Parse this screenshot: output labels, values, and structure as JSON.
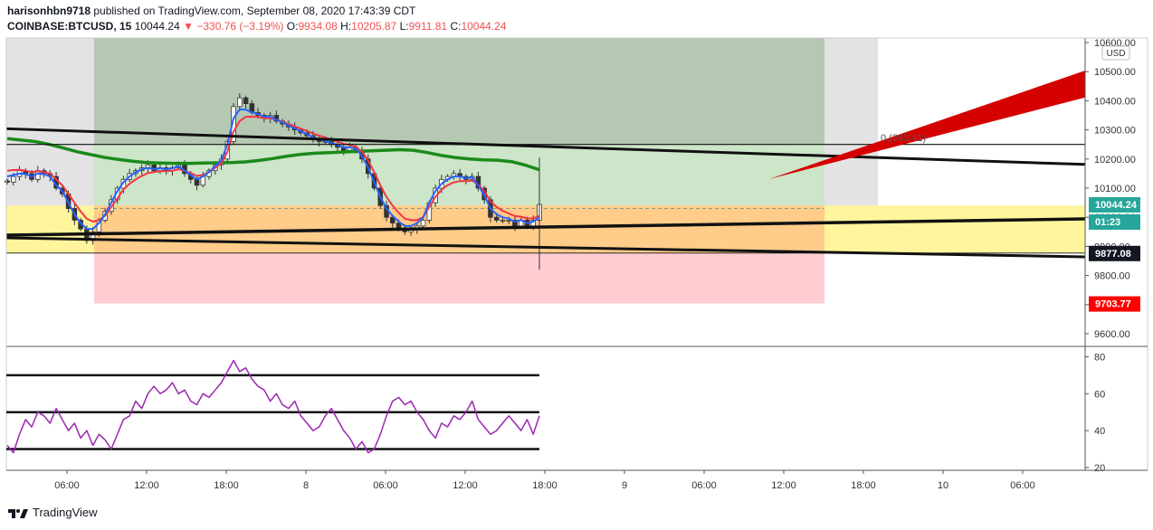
{
  "header": {
    "author": "harisonhbn9718",
    "published_text": " published on TradingView.com, September 08, 2020 17:43:39 CDT",
    "symbol": "COINBASE:BTCUSD, 15",
    "last": "10044.24",
    "change": "−330.76 (−3.19%)",
    "o_label": "O:",
    "o": "9934.08",
    "h_label": "H:",
    "h": "10205.87",
    "l_label": "L:",
    "l": "9911.81",
    "c_label": "C:",
    "c": "10044.24"
  },
  "footer": {
    "brand": "TradingView"
  },
  "colors": {
    "up": "#26a69a",
    "down": "#ef5350",
    "ema_fast": "#2962ff",
    "ema_slow": "#f23645",
    "ma_long": "#1b8a1b",
    "rsi": "#9c27b0",
    "target": "#d50000"
  },
  "chart_data": [
    {
      "type": "candlestick",
      "currency": "USD",
      "y_ticks": [
        10600,
        10500,
        10400,
        10300,
        10200,
        10100,
        10000,
        9900,
        9800,
        9700,
        9600
      ],
      "y_tick_labels": [
        "10600.00",
        "10500.00",
        "10400.00",
        "10300.00",
        "10200.00",
        "10100.00",
        "10000.00",
        "9900.00",
        "9800.00",
        "9700.00",
        "9600.00"
      ],
      "ylim": [
        9560,
        10610
      ],
      "x_tick_labels": [
        "06:00",
        "12:00",
        "18:00",
        "8",
        "06:00",
        "12:00",
        "18:00",
        "9",
        "06:00",
        "12:00",
        "18:00",
        "10",
        "06:00"
      ],
      "price_labels": [
        {
          "value": 10044.24,
          "text": "10044.24",
          "color": "#26a69a"
        },
        {
          "value": 9995,
          "text": "01:23",
          "color": "#26a69a"
        },
        {
          "value": 9877.08,
          "text": "9877.08",
          "color": "#131722"
        },
        {
          "value": 9703.77,
          "text": "9703.77",
          "color": "#ff0000"
        }
      ],
      "annotation_text": "0.(243.41)",
      "levels": {
        "top_line": 10250,
        "entry_top": 10040,
        "entry_bottom": 9877,
        "stop": 9704,
        "projection_top": 10605
      },
      "close": [
        10120,
        10140,
        10160,
        10150,
        10130,
        10160,
        10150,
        10140,
        10100,
        10080,
        10030,
        9990,
        9960,
        9920,
        9950,
        9990,
        10020,
        10060,
        10100,
        10130,
        10150,
        10160,
        10170,
        10180,
        10160,
        10170,
        10160,
        10170,
        10180,
        10150,
        10130,
        10110,
        10140,
        10160,
        10180,
        10200,
        10260,
        10380,
        10410,
        10390,
        10360,
        10350,
        10340,
        10350,
        10330,
        10320,
        10310,
        10300,
        10290,
        10280,
        10270,
        10260,
        10260,
        10250,
        10240,
        10230,
        10240,
        10230,
        10200,
        10150,
        10100,
        10040,
        10000,
        9980,
        9960,
        9950,
        9960,
        9970,
        9990,
        10050,
        10100,
        10130,
        10140,
        10150,
        10140,
        10130,
        10140,
        10100,
        10060,
        10000,
        9990,
        9990,
        9990,
        9970,
        9990,
        9970,
        9990,
        10044
      ],
      "ema_fast": [
        10140,
        10145,
        10150,
        10148,
        10140,
        10150,
        10148,
        10140,
        10110,
        10090,
        10050,
        10010,
        9980,
        9960,
        9960,
        9980,
        10010,
        10050,
        10090,
        10120,
        10140,
        10155,
        10165,
        10170,
        10165,
        10168,
        10165,
        10168,
        10175,
        10160,
        10145,
        10130,
        10140,
        10155,
        10175,
        10195,
        10250,
        10340,
        10370,
        10370,
        10360,
        10355,
        10345,
        10345,
        10335,
        10325,
        10315,
        10305,
        10295,
        10285,
        10275,
        10268,
        10262,
        10255,
        10248,
        10240,
        10240,
        10235,
        10210,
        10170,
        10120,
        10070,
        10030,
        10005,
        9985,
        9970,
        9970,
        9980,
        10000,
        10050,
        10090,
        10115,
        10130,
        10140,
        10140,
        10135,
        10137,
        10110,
        10075,
        10030,
        10010,
        10000,
        9995,
        9985,
        9990,
        9980,
        9985,
        10000
      ],
      "ema_slow": [
        10160,
        10162,
        10163,
        10160,
        10155,
        10158,
        10155,
        10150,
        10130,
        10110,
        10080,
        10050,
        10020,
        9995,
        9985,
        9990,
        10005,
        10035,
        10065,
        10095,
        10115,
        10130,
        10142,
        10152,
        10155,
        10158,
        10158,
        10160,
        10165,
        10160,
        10152,
        10142,
        10145,
        10155,
        10170,
        10185,
        10225,
        10295,
        10330,
        10345,
        10345,
        10345,
        10340,
        10340,
        10335,
        10328,
        10320,
        10312,
        10304,
        10296,
        10288,
        10280,
        10274,
        10267,
        10260,
        10252,
        10248,
        10242,
        10225,
        10195,
        10155,
        10110,
        10070,
        10040,
        10015,
        9995,
        9990,
        9990,
        10000,
        10035,
        10070,
        10095,
        10110,
        10120,
        10124,
        10124,
        10126,
        10112,
        10090,
        10055,
        10035,
        10022,
        10013,
        10004,
        10002,
        9996,
        9996,
        10005
      ],
      "ma_long": [
        10270,
        10265,
        10260,
        10250,
        10238,
        10225,
        10215,
        10205,
        10198,
        10192,
        10188,
        10186,
        10185,
        10185,
        10186,
        10187,
        10188,
        10190,
        10195,
        10202,
        10210,
        10216,
        10220,
        10222,
        10224,
        10226,
        10228,
        10230,
        10232,
        10230,
        10222,
        10212,
        10205,
        10200,
        10197,
        10196,
        10191,
        10179,
        10163
      ],
      "rsi": {
        "ylim": [
          20,
          85
        ],
        "y_ticks": [
          80,
          60,
          40,
          20
        ],
        "bands": [
          70,
          50,
          30
        ],
        "values": [
          32,
          28,
          38,
          46,
          42,
          50,
          48,
          44,
          52,
          46,
          40,
          44,
          36,
          40,
          32,
          38,
          35,
          30,
          38,
          46,
          48,
          56,
          52,
          60,
          64,
          60,
          62,
          66,
          60,
          62,
          56,
          54,
          60,
          58,
          62,
          66,
          72,
          78,
          72,
          74,
          68,
          64,
          62,
          56,
          60,
          54,
          52,
          56,
          48,
          44,
          40,
          42,
          48,
          52,
          46,
          40,
          36,
          30,
          34,
          28,
          30,
          38,
          48,
          56,
          58,
          54,
          56,
          50,
          46,
          40,
          36,
          44,
          42,
          48,
          46,
          50,
          56,
          46,
          42,
          38,
          40,
          44,
          48,
          44,
          40,
          46,
          38,
          48
        ]
      }
    }
  ]
}
